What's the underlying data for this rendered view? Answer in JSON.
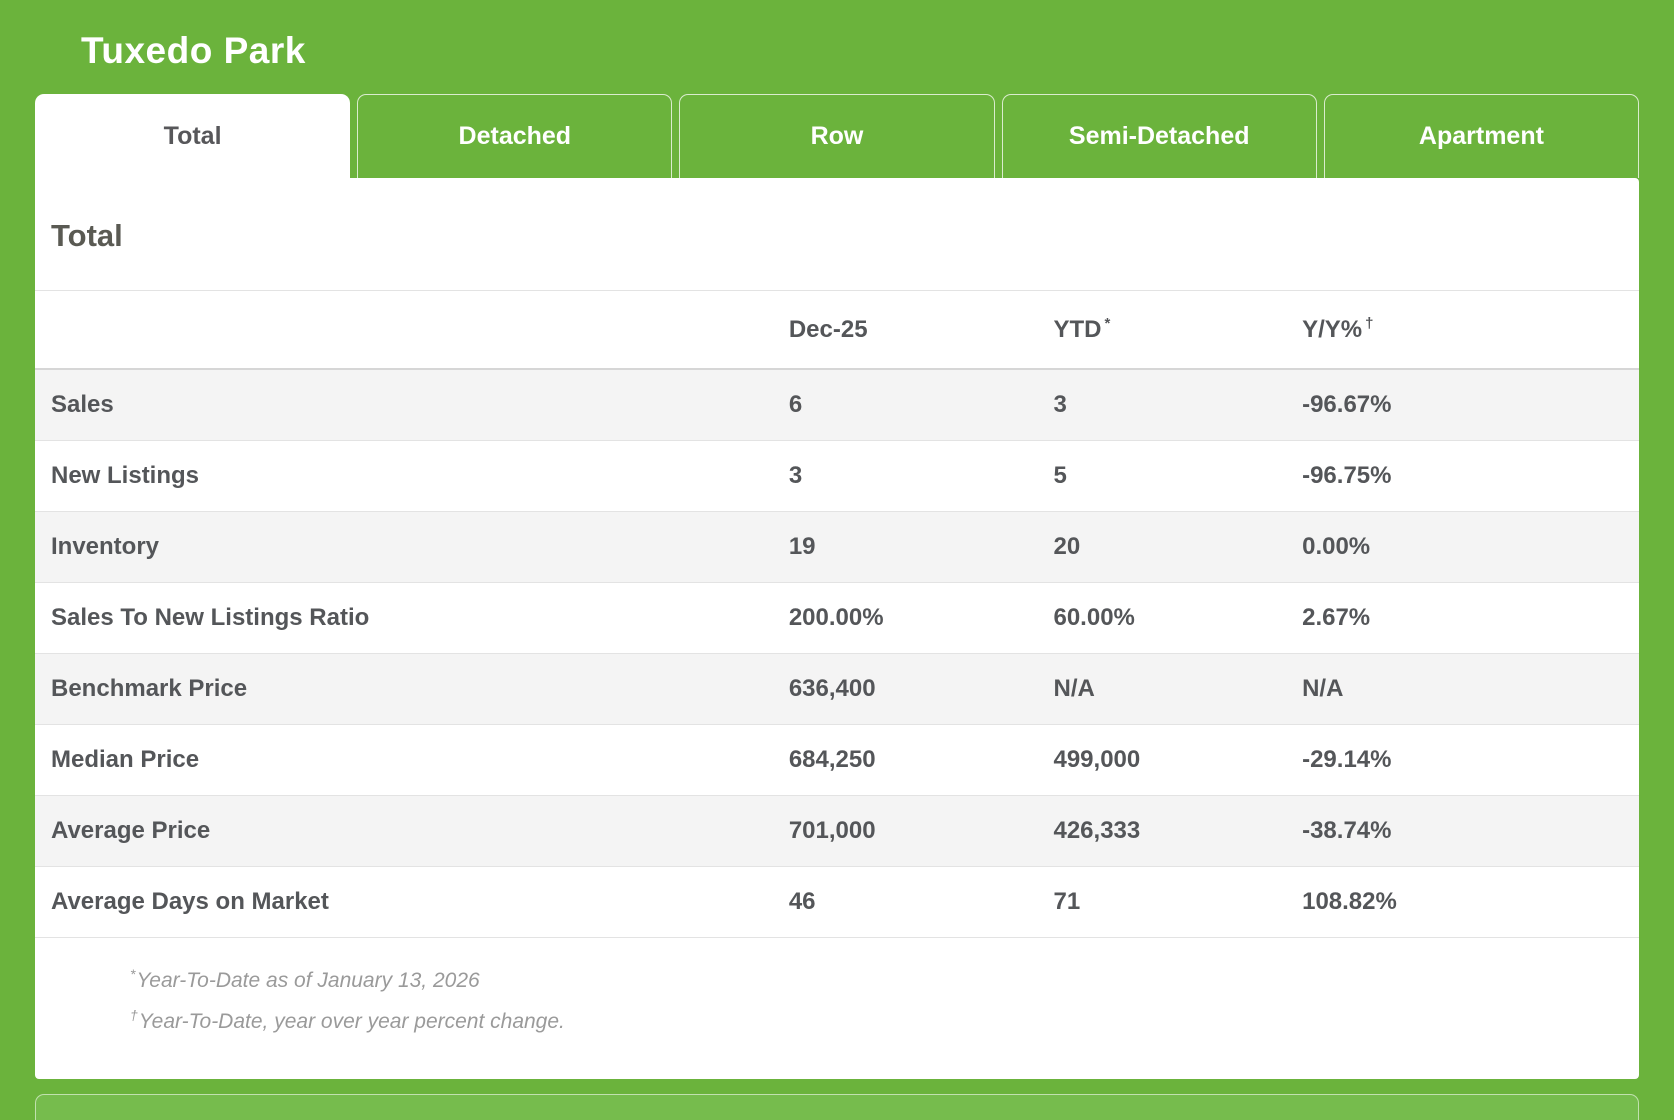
{
  "page": {
    "title": "Tuxedo Park"
  },
  "colors": {
    "background_green": "#6bb33c",
    "active_tab_bg": "#ffffff",
    "text_dark": "#545659",
    "row_alt_bg": "#f4f4f4",
    "footnote_gray": "#9a9a9a"
  },
  "tabs": [
    {
      "label": "Total",
      "active": true
    },
    {
      "label": "Detached",
      "active": false
    },
    {
      "label": "Row",
      "active": false
    },
    {
      "label": "Semi-Detached",
      "active": false
    },
    {
      "label": "Apartment",
      "active": false
    }
  ],
  "section": {
    "heading": "Total"
  },
  "table": {
    "columns": [
      {
        "label": "",
        "sup": ""
      },
      {
        "label": "Dec-25",
        "sup": ""
      },
      {
        "label": "YTD",
        "sup": "*"
      },
      {
        "label": "Y/Y%",
        "sup": "†"
      }
    ],
    "rows": [
      {
        "label": "Sales",
        "dec": "6",
        "ytd": "3",
        "yoy": "-96.67%"
      },
      {
        "label": "New Listings",
        "dec": "3",
        "ytd": "5",
        "yoy": "-96.75%"
      },
      {
        "label": "Inventory",
        "dec": "19",
        "ytd": "20",
        "yoy": "0.00%"
      },
      {
        "label": "Sales To New Listings Ratio",
        "dec": "200.00%",
        "ytd": "60.00%",
        "yoy": "2.67%"
      },
      {
        "label": "Benchmark Price",
        "dec": "636,400",
        "ytd": "N/A",
        "yoy": "N/A"
      },
      {
        "label": "Median Price",
        "dec": "684,250",
        "ytd": "499,000",
        "yoy": "-29.14%"
      },
      {
        "label": "Average Price",
        "dec": "701,000",
        "ytd": "426,333",
        "yoy": "-38.74%"
      },
      {
        "label": "Average Days on Market",
        "dec": "46",
        "ytd": "71",
        "yoy": "108.82%"
      }
    ]
  },
  "footnotes": [
    {
      "sup": "*",
      "text": "Year-To-Date as of January 13, 2026"
    },
    {
      "sup": "†",
      "text": "Year-To-Date, year over year percent change."
    }
  ]
}
